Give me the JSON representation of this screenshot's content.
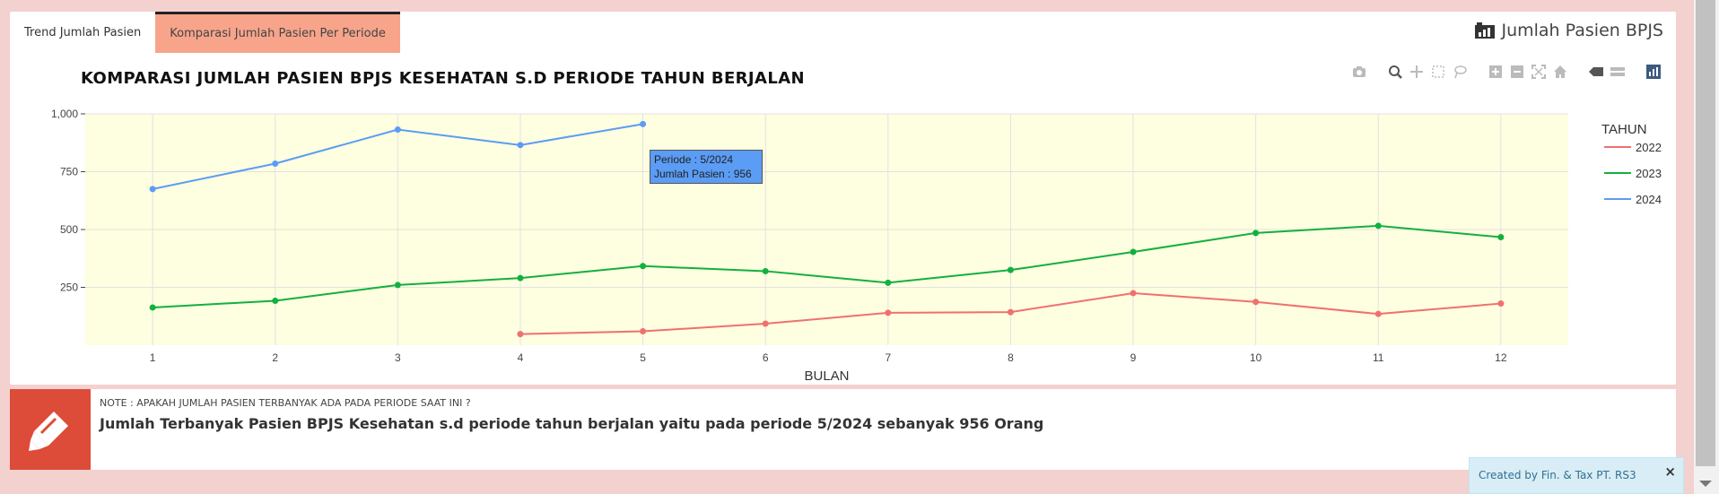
{
  "tabs": [
    {
      "label": "Trend Jumlah Pasien"
    },
    {
      "label": "Komparasi Jumlah Pasien Per Periode"
    }
  ],
  "box_title": "Jumlah Pasien BPJS",
  "tooltip": {
    "line1": "Periode : 5/2024",
    "line2": "Jumlah Pasien : 956"
  },
  "note": {
    "label": "NOTE : APAKAH JUMLAH PASIEN TERBANYAK ADA PADA PERIODE SAAT INI ?",
    "text": "Jumlah Terbanyak Pasien BPJS Kesehatan s.d periode tahun berjalan yaitu pada periode 5/2024 sebanyak 956 Orang"
  },
  "credit": {
    "text": "Created by Fin. & Tax PT. RS3",
    "close": "×"
  },
  "modebar_icons": [
    "camera-icon",
    "zoom-icon",
    "pan-icon",
    "box-select-icon",
    "lasso-icon",
    "zoom-in-icon",
    "zoom-out-icon",
    "autoscale-icon",
    "reset-axes-icon",
    "spike-lines-icon",
    "compare-hover-icon",
    "plotly-logo-icon"
  ],
  "colors": {
    "plot_bg": "#fefee0",
    "s2022": "#f07070",
    "s2023": "#12b040",
    "s2024": "#5b9cf5"
  },
  "chart_data": {
    "type": "line",
    "title": "KOMPARASI JUMLAH PASIEN BPJS KESEHATAN S.D PERIODE TAHUN BERJALAN",
    "xlabel": "BULAN",
    "ylabel": "",
    "x": [
      1,
      2,
      3,
      4,
      5,
      6,
      7,
      8,
      9,
      10,
      11,
      12
    ],
    "xticks": [
      "1",
      "2",
      "3",
      "4",
      "5",
      "6",
      "7",
      "8",
      "9",
      "10",
      "11",
      "12"
    ],
    "ylim": [
      0,
      1000
    ],
    "yticks": [
      250,
      500,
      750,
      1000
    ],
    "ytick_labels": [
      "250",
      "500",
      "750",
      "1,000"
    ],
    "legend_title": "TAHUN",
    "legend_position": "right",
    "series": [
      {
        "name": "2022",
        "x": [
          4,
          5,
          6,
          7,
          8,
          9,
          10,
          11,
          12
        ],
        "values": [
          48,
          60,
          93,
          140,
          143,
          225,
          187,
          135,
          180
        ]
      },
      {
        "name": "2023",
        "x": [
          1,
          2,
          3,
          4,
          5,
          6,
          7,
          8,
          9,
          10,
          11,
          12
        ],
        "values": [
          163,
          192,
          260,
          290,
          342,
          320,
          270,
          325,
          403,
          485,
          516,
          467
        ]
      },
      {
        "name": "2024",
        "x": [
          1,
          2,
          3,
          4,
          5
        ],
        "values": [
          675,
          785,
          932,
          865,
          956
        ]
      }
    ]
  }
}
